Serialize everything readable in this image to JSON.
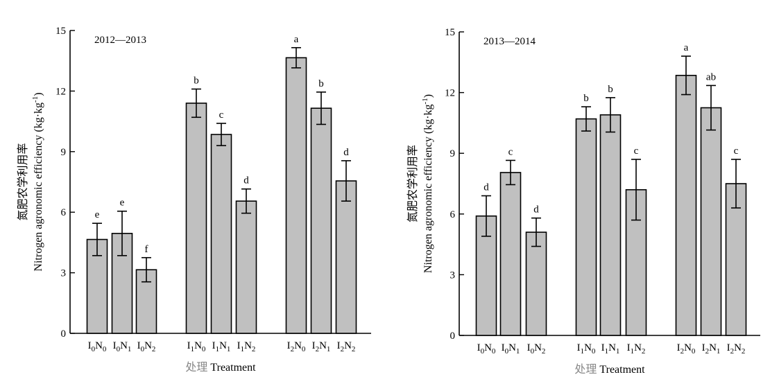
{
  "figure": {
    "xlabel_cn": "处理",
    "xlabel_en": "Treatment",
    "ylabel_cn": "氮肥农学利用率",
    "ylabel_en": "Nitrogen agronomic efficiency (kg·kg",
    "ylabel_sup": "-1",
    "ylabel_close": ")",
    "bar_color": "#c0c0c0",
    "cn_label_color": "#888888"
  },
  "chart_data": [
    {
      "type": "bar",
      "title": "2012—2013",
      "xlabel": "处理 Treatment",
      "ylabel": "氮肥农学利用率 Nitrogen agronomic efficiency (kg·kg-1)",
      "ylim": [
        0,
        15
      ],
      "yticks": [
        "0",
        "3",
        "6",
        "9",
        "12",
        "15"
      ],
      "grid": false,
      "categories": [
        {
          "main": "I",
          "sub1": "0",
          "mid": "N",
          "sub2": "0"
        },
        {
          "main": "I",
          "sub1": "0",
          "mid": "N",
          "sub2": "1"
        },
        {
          "main": "I",
          "sub1": "0",
          "mid": "N",
          "sub2": "2"
        },
        {
          "main": "I",
          "sub1": "1",
          "mid": "N",
          "sub2": "0"
        },
        {
          "main": "I",
          "sub1": "1",
          "mid": "N",
          "sub2": "1"
        },
        {
          "main": "I",
          "sub1": "1",
          "mid": "N",
          "sub2": "2"
        },
        {
          "main": "I",
          "sub1": "2",
          "mid": "N",
          "sub2": "0"
        },
        {
          "main": "I",
          "sub1": "2",
          "mid": "N",
          "sub2": "1"
        },
        {
          "main": "I",
          "sub1": "2",
          "mid": "N",
          "sub2": "2"
        }
      ],
      "values": [
        4.65,
        4.95,
        3.15,
        11.4,
        9.85,
        6.55,
        13.65,
        11.15,
        7.55
      ],
      "errors": [
        0.8,
        1.1,
        0.6,
        0.7,
        0.55,
        0.6,
        0.5,
        0.8,
        1.0
      ],
      "letters": [
        "e",
        "e",
        "f",
        "b",
        "c",
        "d",
        "a",
        "b",
        "d"
      ]
    },
    {
      "type": "bar",
      "title": "2013—2014",
      "xlabel": "处理 Treatment",
      "ylabel": "氮肥农学利用率 Nitrogen agronomic efficiency (kg·kg-1)",
      "ylim": [
        0,
        15
      ],
      "yticks": [
        "0",
        "3",
        "6",
        "9",
        "12",
        "15"
      ],
      "grid": false,
      "categories": [
        {
          "main": "I",
          "sub1": "0",
          "mid": "N",
          "sub2": "0"
        },
        {
          "main": "I",
          "sub1": "0",
          "mid": "N",
          "sub2": "1"
        },
        {
          "main": "I",
          "sub1": "0",
          "mid": "N",
          "sub2": "2"
        },
        {
          "main": "I",
          "sub1": "1",
          "mid": "N",
          "sub2": "0"
        },
        {
          "main": "I",
          "sub1": "1",
          "mid": "N",
          "sub2": "1"
        },
        {
          "main": "I",
          "sub1": "1",
          "mid": "N",
          "sub2": "2"
        },
        {
          "main": "I",
          "sub1": "2",
          "mid": "N",
          "sub2": "0"
        },
        {
          "main": "I",
          "sub1": "2",
          "mid": "N",
          "sub2": "1"
        },
        {
          "main": "I",
          "sub1": "2",
          "mid": "N",
          "sub2": "2"
        }
      ],
      "values": [
        5.9,
        8.05,
        5.1,
        10.7,
        10.9,
        7.2,
        12.85,
        11.25,
        7.5
      ],
      "errors": [
        1.0,
        0.6,
        0.7,
        0.6,
        0.85,
        1.5,
        0.95,
        1.1,
        1.2
      ],
      "letters": [
        "d",
        "c",
        "d",
        "b",
        "b",
        "c",
        "a",
        "ab",
        "c"
      ]
    }
  ]
}
